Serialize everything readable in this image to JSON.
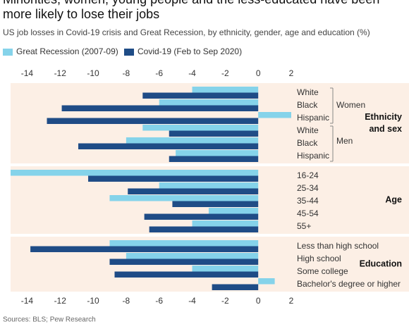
{
  "title": "Minorities, women, young people and the less-educated have been more likely to lose their jobs",
  "source": "Sources: BLS; Pew Research",
  "chart_data": {
    "type": "bar",
    "orientation": "horizontal",
    "subtitle": "US job losses in Covid-19 crisis and Great Recession, by ethnicity, gender, age and education (%)",
    "groups": [
      {
        "name": "Ethnicity and sex",
        "subgroups": [
          {
            "name": "Women",
            "categories": [
              "White",
              "Black",
              "Hispanic"
            ]
          },
          {
            "name": "Men",
            "categories": [
              "White",
              "Black",
              "Hispanic"
            ]
          }
        ]
      },
      {
        "name": "Age",
        "categories": [
          "16-24",
          "25-34",
          "35-44",
          "45-54",
          "55+"
        ]
      },
      {
        "name": "Education",
        "categories": [
          "Less than high school",
          "High school",
          "Some college",
          "Bachelor's degree or higher"
        ]
      }
    ],
    "series": [
      {
        "name": "Great Recession (2007-09)",
        "color": "#85d3ea",
        "values": [
          -4.0,
          -6.0,
          2.0,
          -7.0,
          -8.0,
          -5.0,
          -15.0,
          -6.0,
          -9.0,
          -3.0,
          -4.0,
          -9.0,
          -8.0,
          -4.0,
          1.0
        ]
      },
      {
        "name": "Covid-19 (Feb to Sep 2020)",
        "color": "#1f4c86",
        "values": [
          -7.0,
          -11.9,
          -12.8,
          -5.4,
          -10.9,
          -5.4,
          -10.3,
          -7.9,
          -5.2,
          -6.9,
          -6.6,
          -13.8,
          -9.0,
          -8.7,
          -2.8
        ]
      }
    ],
    "xlim": [
      -15,
      2
    ],
    "xticks": [
      -14,
      -12,
      -10,
      -8,
      -6,
      -4,
      -2,
      0,
      2
    ],
    "grid": false,
    "legend": "top-left"
  }
}
